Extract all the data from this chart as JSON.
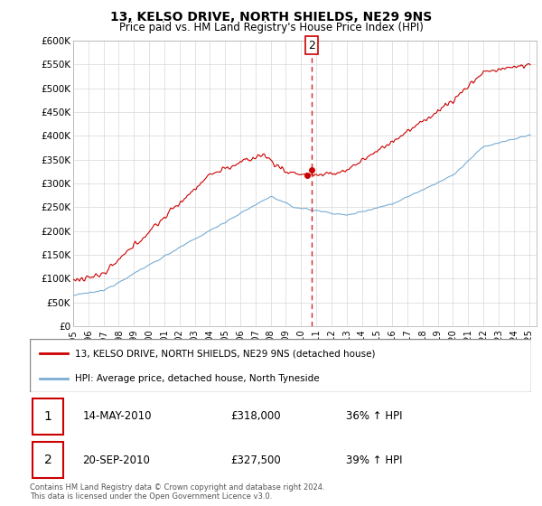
{
  "title": "13, KELSO DRIVE, NORTH SHIELDS, NE29 9NS",
  "subtitle": "Price paid vs. HM Land Registry's House Price Index (HPI)",
  "ylabel_ticks": [
    "£0",
    "£50K",
    "£100K",
    "£150K",
    "£200K",
    "£250K",
    "£300K",
    "£350K",
    "£400K",
    "£450K",
    "£500K",
    "£550K",
    "£600K"
  ],
  "ytick_values": [
    0,
    50000,
    100000,
    150000,
    200000,
    250000,
    300000,
    350000,
    400000,
    450000,
    500000,
    550000,
    600000
  ],
  "xtick_years": [
    1995,
    1996,
    1997,
    1998,
    1999,
    2000,
    2001,
    2002,
    2003,
    2004,
    2005,
    2006,
    2007,
    2008,
    2009,
    2010,
    2011,
    2012,
    2013,
    2014,
    2015,
    2016,
    2017,
    2018,
    2019,
    2020,
    2021,
    2022,
    2023,
    2024,
    2025
  ],
  "sale1_date": "14-MAY-2010",
  "sale1_price": 318000,
  "sale1_hpi": "36% ↑ HPI",
  "sale1_x": 2010.37,
  "sale2_date": "20-SEP-2010",
  "sale2_price": 327500,
  "sale2_hpi": "39% ↑ HPI",
  "sale2_x": 2010.72,
  "legend1": "13, KELSO DRIVE, NORTH SHIELDS, NE29 9NS (detached house)",
  "legend2": "HPI: Average price, detached house, North Tyneside",
  "footer": "Contains HM Land Registry data © Crown copyright and database right 2024.\nThis data is licensed under the Open Government Licence v3.0.",
  "property_color": "#cc0000",
  "hpi_color": "#7aadd4",
  "grid_color": "#d8d8d8"
}
